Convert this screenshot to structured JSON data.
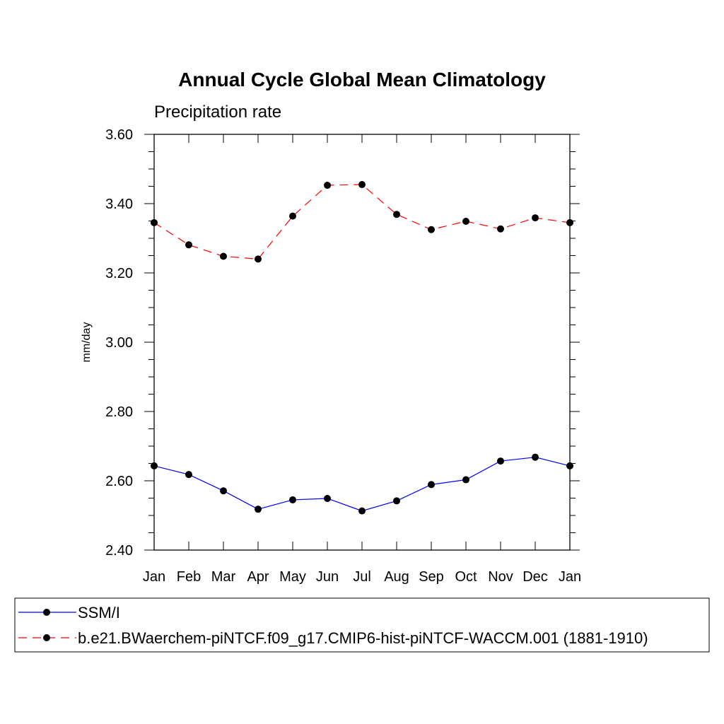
{
  "chart_data": {
    "type": "line",
    "title": "Annual Cycle Global Mean Climatology",
    "subtitle": "Precipitation rate",
    "xlabel": "",
    "ylabel": "mm/day",
    "categories": [
      "Jan",
      "Feb",
      "Mar",
      "Apr",
      "May",
      "Jun",
      "Jul",
      "Aug",
      "Sep",
      "Oct",
      "Nov",
      "Dec",
      "Jan"
    ],
    "ylim": [
      2.4,
      3.6
    ],
    "yticks": [
      "2.40",
      "2.60",
      "2.80",
      "3.00",
      "3.20",
      "3.40",
      "3.60"
    ],
    "grid": false,
    "legend_position": "bottom",
    "series": [
      {
        "name": "SSM/I",
        "color": "#0000ff",
        "line_style": "solid",
        "marker": "filled-circle",
        "values": [
          2.643,
          2.618,
          2.571,
          2.518,
          2.545,
          2.549,
          2.513,
          2.542,
          2.589,
          2.603,
          2.657,
          2.668,
          2.643
        ]
      },
      {
        "name": "b.e21.BWaerchem-piNTCF.f09_g17.CMIP6-hist-piNTCF-WACCM.001 (1881-1910)",
        "color": "#ff0000",
        "line_style": "dashed",
        "marker": "filled-circle",
        "values": [
          3.345,
          3.281,
          3.248,
          3.24,
          3.364,
          3.453,
          3.455,
          3.369,
          3.325,
          3.349,
          3.327,
          3.359,
          3.345
        ]
      }
    ]
  }
}
